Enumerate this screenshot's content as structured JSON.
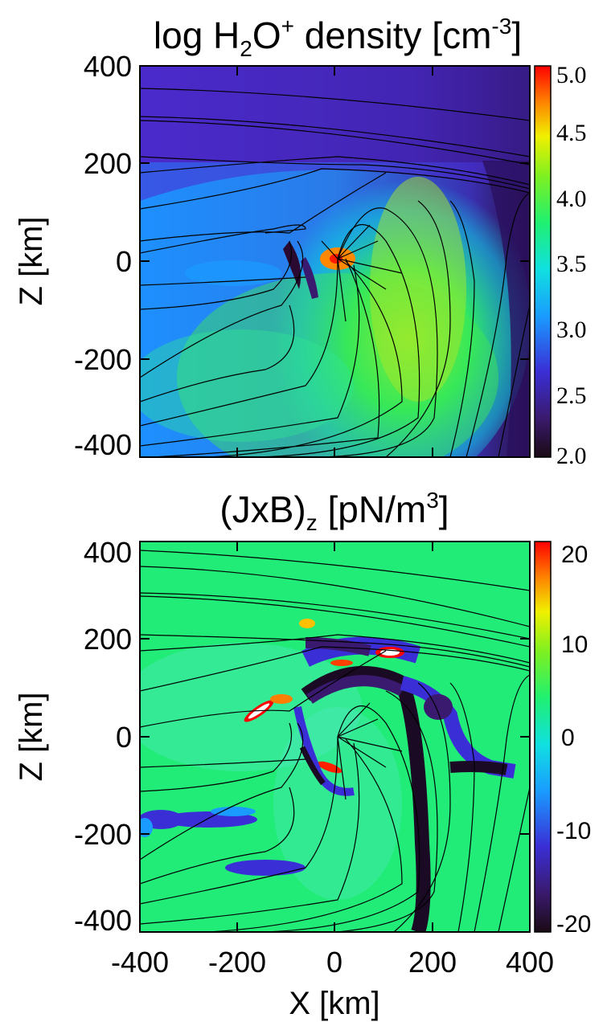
{
  "chart_data": [
    {
      "type": "heatmap",
      "title": {
        "prefix": "log H",
        "sub": "2",
        "mid": "O",
        "sup": "+",
        "suffix": " density [cm",
        "unit_sup": "-3",
        "end": "]"
      },
      "xlabel": "",
      "ylabel": "Z [km]",
      "xlim": [
        -400,
        400
      ],
      "ylim": [
        -400,
        400
      ],
      "x_ticks": [
        -400,
        -200,
        0,
        200,
        400
      ],
      "y_ticks": [
        400,
        200,
        0,
        -200,
        -400
      ],
      "x_tick_labels_shown": false,
      "colorbar": {
        "ticks": [
          "2.0",
          "2.5",
          "3.0",
          "3.5",
          "4.0",
          "4.5",
          "5.0"
        ],
        "range": [
          2.0,
          5.0
        ],
        "colors": [
          "#1a0a14",
          "#3a1a6e",
          "#3a2fd6",
          "#1a9bff",
          "#10e0e0",
          "#20f070",
          "#80f020",
          "#f0f000",
          "#ff8000",
          "#ff0000"
        ]
      },
      "streamlines": true
    },
    {
      "type": "heatmap",
      "title": {
        "prefix": "(JxB)",
        "sub": "z",
        "mid": " [pN/m",
        "sup": "3",
        "end": "]"
      },
      "xlabel": "X [km]",
      "ylabel": "Z [km]",
      "xlim": [
        -400,
        400
      ],
      "ylim": [
        -400,
        400
      ],
      "x_ticks": [
        -400,
        -200,
        0,
        200,
        400
      ],
      "y_ticks": [
        400,
        200,
        0,
        -200,
        -400
      ],
      "x_tick_labels_shown": true,
      "colorbar": {
        "ticks": [
          "-20",
          "-10",
          "0",
          "10",
          "20"
        ],
        "range": [
          -20,
          20
        ],
        "colors": [
          "#1a0a14",
          "#3a1a6e",
          "#3a2fd6",
          "#1a9bff",
          "#10e0e0",
          "#20f070",
          "#80f020",
          "#f0f000",
          "#ff8000",
          "#ff0000"
        ]
      },
      "streamlines": true
    }
  ]
}
